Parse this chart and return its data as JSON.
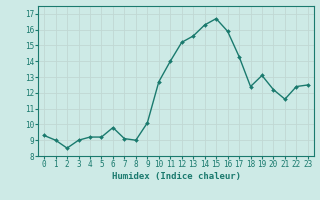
{
  "x": [
    0,
    1,
    2,
    3,
    4,
    5,
    6,
    7,
    8,
    9,
    10,
    11,
    12,
    13,
    14,
    15,
    16,
    17,
    18,
    19,
    20,
    21,
    22,
    23
  ],
  "y": [
    9.3,
    9.0,
    8.5,
    9.0,
    9.2,
    9.2,
    9.8,
    9.1,
    9.0,
    10.1,
    12.7,
    14.0,
    15.2,
    15.6,
    16.3,
    16.7,
    15.9,
    14.3,
    12.4,
    13.1,
    12.2,
    11.6,
    12.4,
    12.5
  ],
  "line_color": "#1a7a6e",
  "marker": "D",
  "marker_size": 2.0,
  "line_width": 1.0,
  "xlabel": "Humidex (Indice chaleur)",
  "xlim": [
    -0.5,
    23.5
  ],
  "ylim": [
    8,
    17.5
  ],
  "yticks": [
    8,
    9,
    10,
    11,
    12,
    13,
    14,
    15,
    16,
    17
  ],
  "xticks": [
    0,
    1,
    2,
    3,
    4,
    5,
    6,
    7,
    8,
    9,
    10,
    11,
    12,
    13,
    14,
    15,
    16,
    17,
    18,
    19,
    20,
    21,
    22,
    23
  ],
  "bg_color": "#cdeae6",
  "grid_major_color": "#c0d8d4",
  "grid_minor_color": "#daf0ec",
  "spine_color": "#1a7a6e",
  "label_color": "#1a7a6e",
  "xlabel_fontsize": 6.5,
  "tick_fontsize": 5.5
}
